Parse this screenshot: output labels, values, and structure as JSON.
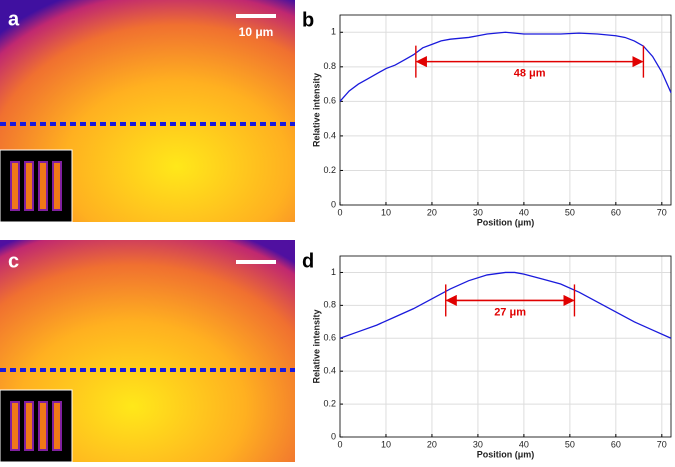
{
  "image_panels": [
    {
      "label": "a",
      "scale_bar": "10 μm"
    },
    {
      "label": "c"
    }
  ],
  "chart_data": [
    {
      "type": "line",
      "label": "b",
      "ylabel": "Relative intensity",
      "xlabel": "Position (μm)",
      "x": [
        0,
        2,
        4,
        6,
        8,
        10,
        12,
        14,
        16,
        18,
        20,
        22,
        24,
        26,
        28,
        30,
        32,
        34,
        36,
        38,
        40,
        44,
        48,
        52,
        56,
        60,
        62,
        64,
        66,
        68,
        70,
        72
      ],
      "values": [
        0.6,
        0.66,
        0.7,
        0.73,
        0.76,
        0.79,
        0.81,
        0.84,
        0.87,
        0.91,
        0.93,
        0.95,
        0.96,
        0.965,
        0.97,
        0.98,
        0.99,
        0.995,
        1.0,
        0.995,
        0.99,
        0.99,
        0.99,
        0.995,
        0.99,
        0.98,
        0.97,
        0.95,
        0.92,
        0.86,
        0.77,
        0.65
      ],
      "color": "#1a1adc",
      "xlim": [
        0,
        72
      ],
      "ylim": [
        0,
        1.1
      ],
      "xticks": [
        0,
        10,
        20,
        30,
        40,
        50,
        60,
        70
      ],
      "yticks": [
        0,
        0.2,
        0.4,
        0.6,
        0.8,
        1
      ],
      "grid": true,
      "annotation": {
        "text": "48 μm",
        "x_start": 16.5,
        "x_end": 66,
        "y": 0.83,
        "color": "#e00000"
      }
    },
    {
      "type": "line",
      "label": "d",
      "ylabel": "Relative intensity",
      "xlabel": "Position (μm)",
      "x": [
        0,
        4,
        8,
        12,
        16,
        20,
        24,
        28,
        32,
        36,
        38,
        40,
        44,
        48,
        52,
        56,
        60,
        64,
        68,
        72
      ],
      "values": [
        0.6,
        0.64,
        0.68,
        0.73,
        0.78,
        0.84,
        0.9,
        0.95,
        0.985,
        1.0,
        1.0,
        0.99,
        0.96,
        0.93,
        0.88,
        0.82,
        0.76,
        0.7,
        0.65,
        0.6
      ],
      "color": "#1a1adc",
      "xlim": [
        0,
        72
      ],
      "ylim": [
        0,
        1.1
      ],
      "xticks": [
        0,
        10,
        20,
        30,
        40,
        50,
        60,
        70
      ],
      "yticks": [
        0,
        0.2,
        0.4,
        0.6,
        0.8,
        1
      ],
      "grid": true,
      "annotation": {
        "text": "27 μm",
        "x_start": 23,
        "x_end": 51,
        "y": 0.83,
        "color": "#e00000"
      }
    }
  ]
}
